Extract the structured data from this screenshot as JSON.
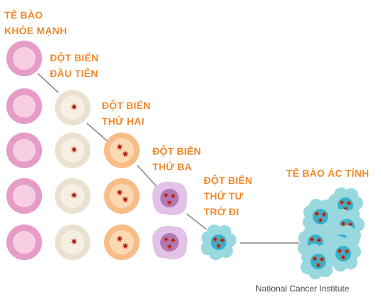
{
  "labels": {
    "healthy": [
      "TẾ BÀO",
      "KHỎE MẠNH"
    ],
    "first": [
      "ĐỘT BIẾN",
      "ĐẦU TIÊN"
    ],
    "second": [
      "ĐỘT BIẾN",
      "THỨ HAI"
    ],
    "third": [
      "ĐỘT BIẾN",
      "THỨ BA"
    ],
    "fourth": [
      "ĐỘT BIẾN",
      "THỨ TƯ",
      "TRỞ ĐI"
    ],
    "malignant": [
      "TẾ BÀO ÁC TÍNH"
    ]
  },
  "credit": "National Cancer Institute",
  "colors": {
    "label": "#f08a2c",
    "healthy_outer": "#e59cc6",
    "healthy_inner": "#f8cfe2",
    "first_outer": "#ebe1cf",
    "first_inner": "#f6efe3",
    "second_outer": "#f7bd86",
    "second_inner": "#fbd9b3",
    "third_blob": "#e2c2e6",
    "third_nucleus": "#b07ab8",
    "cancer_blob": "#9ad8e0",
    "cancer_nucleus": "#36b3cc",
    "mutation": "#d24430",
    "connector": "#8a8a8a",
    "credit_text": "#444444"
  }
}
